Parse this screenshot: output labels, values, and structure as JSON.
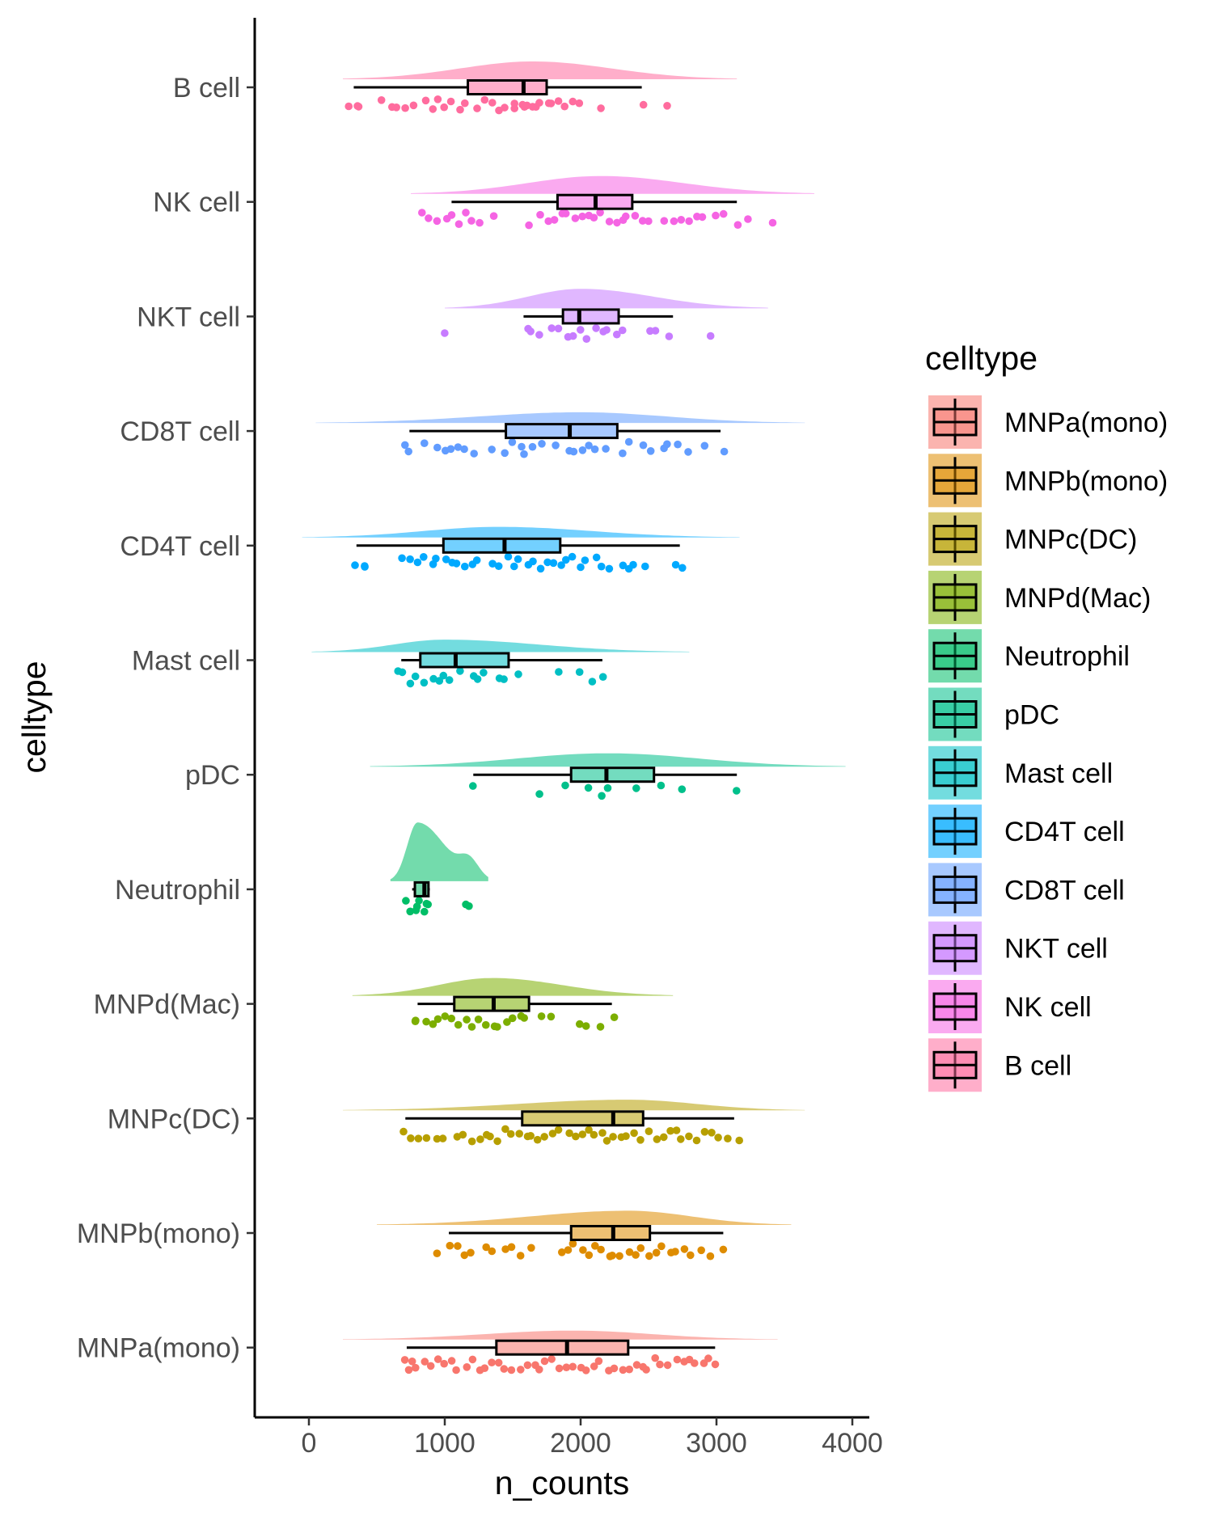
{
  "chart_data": {
    "type": "raincloud",
    "title": "",
    "xlabel": "n_counts",
    "ylabel": "celltype",
    "xlim": [
      -400,
      4150
    ],
    "x_ticks": [
      0,
      1000,
      2000,
      3000,
      4000
    ],
    "x_tick_labels": [
      "0",
      "1000",
      "2000",
      "3000",
      "4000"
    ],
    "legend": {
      "title": "celltype",
      "position": "right",
      "entries": [
        "MNPa(mono)",
        "MNPb(mono)",
        "MNPc(DC)",
        "MNPd(Mac)",
        "Neutrophil",
        "pDC",
        "Mast cell",
        "CD4T cell",
        "CD8T cell",
        "NKT cell",
        "NK cell",
        "B cell"
      ]
    },
    "series": [
      {
        "name": "B cell",
        "color": "#FF6C9E",
        "box": {
          "whisker_low": 330,
          "q1": 1170,
          "median": 1580,
          "q3": 1750,
          "whisker_high": 2450
        },
        "density_range": [
          250,
          3150
        ],
        "density_peak": 1650,
        "density_height": 0.2,
        "points": [
          300,
          340,
          360,
          520,
          600,
          650,
          720,
          780,
          850,
          900,
          950,
          1000,
          1050,
          1100,
          1150,
          1250,
          1300,
          1350,
          1400,
          1450,
          1500,
          1520,
          1560,
          1600,
          1620,
          1650,
          1680,
          1700,
          1750,
          1800,
          1850,
          1900,
          1950,
          2000,
          2150,
          2450,
          2630
        ]
      },
      {
        "name": "NK cell",
        "color": "#F564E3",
        "box": {
          "whisker_low": 1050,
          "q1": 1830,
          "median": 2110,
          "q3": 2380,
          "whisker_high": 3150
        },
        "density_range": [
          750,
          3720
        ],
        "density_peak": 2150,
        "density_height": 0.2,
        "points": [
          830,
          880,
          950,
          1000,
          1050,
          1100,
          1150,
          1200,
          1250,
          1350,
          1620,
          1700,
          1750,
          1800,
          1850,
          1900,
          1950,
          2000,
          2050,
          2100,
          2150,
          2200,
          2250,
          2300,
          2350,
          2400,
          2450,
          2500,
          2600,
          2700,
          2750,
          2800,
          2850,
          2900,
          3000,
          3050,
          3150,
          3220,
          3420
        ]
      },
      {
        "name": "NKT cell",
        "color": "#C77CFF",
        "box": {
          "whisker_low": 1580,
          "q1": 1870,
          "median": 1990,
          "q3": 2280,
          "whisker_high": 2680
        },
        "density_range": [
          1000,
          3380
        ],
        "density_peak": 2000,
        "density_height": 0.22,
        "points": [
          1000,
          1600,
          1650,
          1700,
          1800,
          1850,
          1900,
          1950,
          2000,
          2050,
          2100,
          2150,
          2200,
          2250,
          2300,
          2500,
          2550,
          2650,
          2950
        ]
      },
      {
        "name": "CD8T cell",
        "color": "#619CFF",
        "box": {
          "whisker_low": 740,
          "q1": 1450,
          "median": 1920,
          "q3": 2270,
          "whisker_high": 3030
        },
        "density_range": [
          50,
          3650
        ],
        "density_peak": 2000,
        "density_height": 0.12,
        "points": [
          720,
          750,
          850,
          950,
          1000,
          1050,
          1100,
          1150,
          1200,
          1350,
          1450,
          1500,
          1550,
          1600,
          1650,
          1700,
          1800,
          1900,
          1950,
          2000,
          2050,
          2100,
          2200,
          2300,
          2350,
          2450,
          2500,
          2600,
          2650,
          2700,
          2800,
          2900,
          3050
        ]
      },
      {
        "name": "CD4T cell",
        "color": "#00A9FF",
        "box": {
          "whisker_low": 350,
          "q1": 990,
          "median": 1440,
          "q3": 1850,
          "whisker_high": 2730
        },
        "density_range": [
          -50,
          3170
        ],
        "density_peak": 1400,
        "density_height": 0.12,
        "points": [
          350,
          400,
          420,
          700,
          750,
          800,
          850,
          900,
          950,
          1000,
          1050,
          1100,
          1150,
          1200,
          1250,
          1350,
          1400,
          1450,
          1500,
          1550,
          1600,
          1650,
          1700,
          1750,
          1800,
          1850,
          1900,
          1950,
          2000,
          2050,
          2100,
          2150,
          2200,
          2300,
          2350,
          2400,
          2480,
          2700,
          2750
        ]
      },
      {
        "name": "Mast cell",
        "color": "#00BFC4",
        "box": {
          "whisker_low": 680,
          "q1": 820,
          "median": 1080,
          "q3": 1470,
          "whisker_high": 2160
        },
        "density_range": [
          20,
          2800
        ],
        "density_peak": 1000,
        "density_height": 0.14,
        "points": [
          650,
          700,
          750,
          800,
          850,
          900,
          950,
          1000,
          1050,
          1100,
          1200,
          1250,
          1300,
          1400,
          1450,
          1550,
          1850,
          2000,
          2100,
          2150
        ]
      },
      {
        "name": "pDC",
        "color": "#00C08B",
        "box": {
          "whisker_low": 1210,
          "q1": 1930,
          "median": 2190,
          "q3": 2540,
          "whisker_high": 3150
        },
        "density_range": [
          450,
          3950
        ],
        "density_peak": 2200,
        "density_height": 0.15,
        "points": [
          1200,
          1700,
          1900,
          2050,
          2150,
          2200,
          2400,
          2600,
          2750,
          3150
        ]
      },
      {
        "name": "Neutrophil",
        "color": "#00BE67",
        "box": {
          "whisker_low": 760,
          "q1": 780,
          "median": 850,
          "q3": 880,
          "whisker_high": 890
        },
        "density_range": [
          600,
          1320
        ],
        "density_peak": 800,
        "density_height": 0.66,
        "points": [
          730,
          760,
          780,
          800,
          820,
          840,
          860,
          880,
          1150,
          1180
        ]
      },
      {
        "name": "MNPd(Mac)",
        "color": "#7CAE00",
        "box": {
          "whisker_low": 800,
          "q1": 1070,
          "median": 1360,
          "q3": 1620,
          "whisker_high": 2230
        },
        "density_range": [
          320,
          2680
        ],
        "density_peak": 1350,
        "density_height": 0.2,
        "points": [
          780,
          800,
          850,
          900,
          950,
          1000,
          1050,
          1100,
          1150,
          1200,
          1250,
          1300,
          1350,
          1400,
          1450,
          1500,
          1550,
          1600,
          1700,
          1800,
          2000,
          2050,
          2150,
          2250
        ]
      },
      {
        "name": "MNPc(DC)",
        "color": "#B79F00",
        "box": {
          "whisker_low": 710,
          "q1": 1570,
          "median": 2240,
          "q3": 2460,
          "whisker_high": 3130
        },
        "density_range": [
          250,
          3650
        ],
        "density_peak": 2350,
        "density_height": 0.12,
        "points": [
          700,
          750,
          800,
          850,
          950,
          1000,
          1100,
          1150,
          1200,
          1250,
          1300,
          1350,
          1400,
          1450,
          1500,
          1550,
          1600,
          1650,
          1700,
          1750,
          1800,
          1850,
          1900,
          1950,
          2000,
          2050,
          2100,
          2150,
          2200,
          2250,
          2300,
          2350,
          2400,
          2450,
          2500,
          2550,
          2600,
          2650,
          2700,
          2750,
          2800,
          2850,
          2900,
          2950,
          3000,
          3100,
          3150
        ]
      },
      {
        "name": "MNPb(mono)",
        "color": "#DE8C00",
        "box": {
          "whisker_low": 1030,
          "q1": 1930,
          "median": 2240,
          "q3": 2510,
          "whisker_high": 3050
        },
        "density_range": [
          500,
          3550
        ],
        "density_peak": 2350,
        "density_height": 0.16,
        "points": [
          950,
          1050,
          1100,
          1150,
          1200,
          1300,
          1350,
          1450,
          1500,
          1550,
          1650,
          1850,
          1900,
          1950,
          2000,
          2050,
          2100,
          2150,
          2200,
          2250,
          2300,
          2350,
          2400,
          2450,
          2500,
          2550,
          2600,
          2650,
          2700,
          2750,
          2800,
          2900,
          2950,
          3050
        ]
      },
      {
        "name": "MNPa(mono)",
        "color": "#F8766D",
        "box": {
          "whisker_low": 720,
          "q1": 1380,
          "median": 1900,
          "q3": 2350,
          "whisker_high": 2990
        },
        "density_range": [
          250,
          3450
        ],
        "density_peak": 1950,
        "density_height": 0.1,
        "points": [
          700,
          720,
          750,
          800,
          850,
          900,
          950,
          1000,
          1050,
          1100,
          1150,
          1200,
          1250,
          1300,
          1350,
          1400,
          1450,
          1500,
          1550,
          1600,
          1650,
          1700,
          1750,
          1800,
          1850,
          1900,
          1950,
          2000,
          2050,
          2100,
          2150,
          2200,
          2250,
          2300,
          2350,
          2400,
          2450,
          2500,
          2550,
          2600,
          2650,
          2700,
          2750,
          2800,
          2850,
          2900,
          2950,
          3000
        ]
      }
    ]
  }
}
